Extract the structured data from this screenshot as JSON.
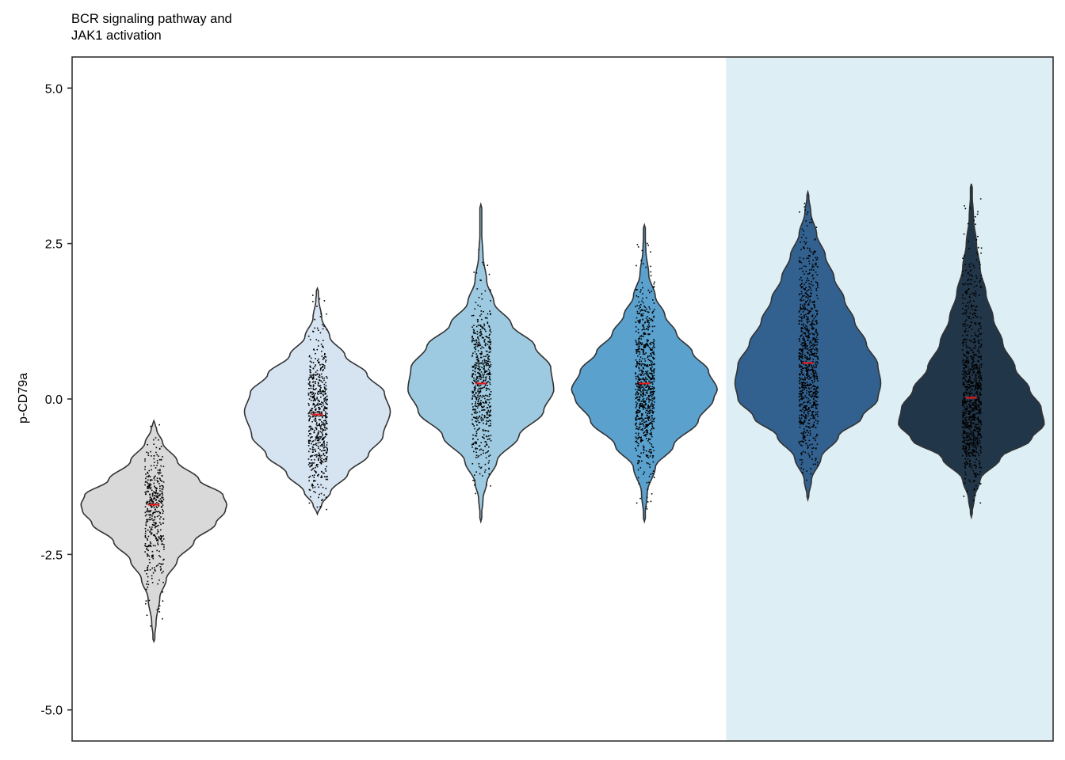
{
  "title_lines": [
    "BCR signaling pathway and",
    "JAK1 activation"
  ],
  "chart_data": {
    "type": "violin",
    "title": "BCR signaling pathway and JAK1 activation",
    "xlabel": "",
    "ylabel": "p-CD79a",
    "ylim": [
      -5.5,
      5.5
    ],
    "yticks": [
      5.0,
      2.5,
      0.0,
      -2.5,
      -5.0
    ],
    "ytick_labels": [
      "5.0",
      "2.5",
      "0.0",
      "-2.5",
      "-5.0"
    ],
    "grid": false,
    "highlight_region": {
      "from_group": 5,
      "to_group": 6,
      "color": "#ddeef5"
    },
    "median_color": "#e31a1c",
    "groups": [
      {
        "fill": "#d9d9d9",
        "min": -3.9,
        "max": -0.35,
        "median": -1.7,
        "peak": -1.7,
        "n_points": 420,
        "profile": [
          [
            -3.9,
            0.0
          ],
          [
            -3.6,
            0.03
          ],
          [
            -3.2,
            0.08
          ],
          [
            -2.9,
            0.17
          ],
          [
            -2.6,
            0.32
          ],
          [
            -2.3,
            0.55
          ],
          [
            -2.0,
            0.85
          ],
          [
            -1.8,
            0.98
          ],
          [
            -1.7,
            1.0
          ],
          [
            -1.55,
            0.95
          ],
          [
            -1.3,
            0.62
          ],
          [
            -1.0,
            0.32
          ],
          [
            -0.7,
            0.12
          ],
          [
            -0.5,
            0.04
          ],
          [
            -0.35,
            0.0
          ]
        ]
      },
      {
        "fill": "#d6e4f2",
        "min": -1.85,
        "max": 1.78,
        "median": -0.25,
        "peak": -0.2,
        "n_points": 600,
        "profile": [
          [
            -1.85,
            0.0
          ],
          [
            -1.7,
            0.06
          ],
          [
            -1.5,
            0.18
          ],
          [
            -1.2,
            0.42
          ],
          [
            -0.9,
            0.7
          ],
          [
            -0.6,
            0.9
          ],
          [
            -0.2,
            1.0
          ],
          [
            0.1,
            0.92
          ],
          [
            0.4,
            0.68
          ],
          [
            0.7,
            0.38
          ],
          [
            1.0,
            0.17
          ],
          [
            1.3,
            0.06
          ],
          [
            1.6,
            0.02
          ],
          [
            1.78,
            0.0
          ]
        ]
      },
      {
        "fill": "#9ecae1",
        "min": -1.97,
        "max": 3.13,
        "median": 0.25,
        "peak": 0.15,
        "n_points": 600,
        "profile": [
          [
            -1.97,
            0.0
          ],
          [
            -1.6,
            0.03
          ],
          [
            -1.35,
            0.08
          ],
          [
            -1.0,
            0.22
          ],
          [
            -0.6,
            0.52
          ],
          [
            -0.2,
            0.86
          ],
          [
            0.15,
            1.0
          ],
          [
            0.5,
            0.96
          ],
          [
            0.85,
            0.74
          ],
          [
            1.2,
            0.42
          ],
          [
            1.55,
            0.18
          ],
          [
            1.9,
            0.08
          ],
          [
            2.3,
            0.03
          ],
          [
            2.7,
            0.01
          ],
          [
            3.13,
            0.0
          ]
        ]
      },
      {
        "fill": "#5aa1ce",
        "min": -1.97,
        "max": 2.8,
        "median": 0.25,
        "peak": 0.15,
        "n_points": 800,
        "profile": [
          [
            -1.97,
            0.0
          ],
          [
            -1.5,
            0.04
          ],
          [
            -1.1,
            0.15
          ],
          [
            -0.75,
            0.4
          ],
          [
            -0.35,
            0.74
          ],
          [
            0.0,
            0.95
          ],
          [
            0.15,
            1.0
          ],
          [
            0.45,
            0.88
          ],
          [
            0.75,
            0.66
          ],
          [
            1.05,
            0.44
          ],
          [
            1.35,
            0.28
          ],
          [
            1.65,
            0.15
          ],
          [
            2.0,
            0.06
          ],
          [
            2.4,
            0.02
          ],
          [
            2.8,
            0.0
          ]
        ]
      },
      {
        "fill": "#32618f",
        "min": -1.62,
        "max": 3.33,
        "median": 0.58,
        "peak": 0.25,
        "n_points": 900,
        "profile": [
          [
            -1.62,
            0.0
          ],
          [
            -1.3,
            0.05
          ],
          [
            -0.95,
            0.18
          ],
          [
            -0.6,
            0.42
          ],
          [
            -0.3,
            0.74
          ],
          [
            0.0,
            0.96
          ],
          [
            0.25,
            1.0
          ],
          [
            0.55,
            0.96
          ],
          [
            0.9,
            0.8
          ],
          [
            1.25,
            0.64
          ],
          [
            1.6,
            0.5
          ],
          [
            1.95,
            0.36
          ],
          [
            2.3,
            0.24
          ],
          [
            2.65,
            0.12
          ],
          [
            3.0,
            0.04
          ],
          [
            3.33,
            0.0
          ]
        ]
      },
      {
        "fill": "#223649",
        "min": -1.9,
        "max": 3.46,
        "median": 0.02,
        "peak": -0.4,
        "n_points": 1000,
        "profile": [
          [
            -1.9,
            0.0
          ],
          [
            -1.6,
            0.04
          ],
          [
            -1.3,
            0.12
          ],
          [
            -0.95,
            0.4
          ],
          [
            -0.65,
            0.82
          ],
          [
            -0.4,
            1.0
          ],
          [
            -0.15,
            0.96
          ],
          [
            0.15,
            0.8
          ],
          [
            0.5,
            0.6
          ],
          [
            0.9,
            0.43
          ],
          [
            1.3,
            0.3
          ],
          [
            1.7,
            0.2
          ],
          [
            2.1,
            0.12
          ],
          [
            2.5,
            0.07
          ],
          [
            2.9,
            0.03
          ],
          [
            3.46,
            0.0
          ]
        ]
      }
    ]
  }
}
